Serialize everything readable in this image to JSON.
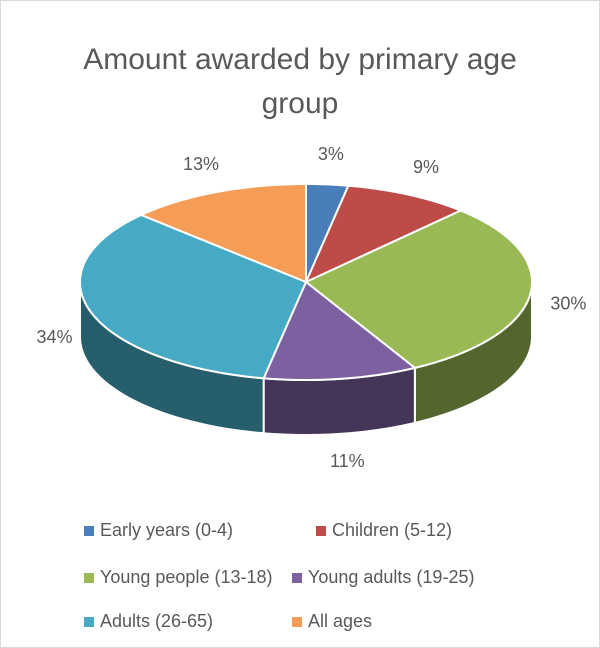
{
  "chart_data": {
    "type": "pie",
    "title": "Amount awarded by primary age group",
    "categories": [
      "Early years (0-4)",
      "Children (5-12)",
      "Young people (13-18)",
      "Young adults (19-25)",
      "Adults (26-65)",
      "All ages"
    ],
    "values": [
      3,
      9,
      30,
      11,
      34,
      13
    ],
    "value_labels": [
      "3%",
      "9%",
      "30%",
      "11%",
      "34%",
      "13%"
    ],
    "colors": [
      "#4a7ebb",
      "#be4b48",
      "#98b954",
      "#7d60a0",
      "#46aac5",
      "#f59d56"
    ],
    "legend": "bottom"
  }
}
